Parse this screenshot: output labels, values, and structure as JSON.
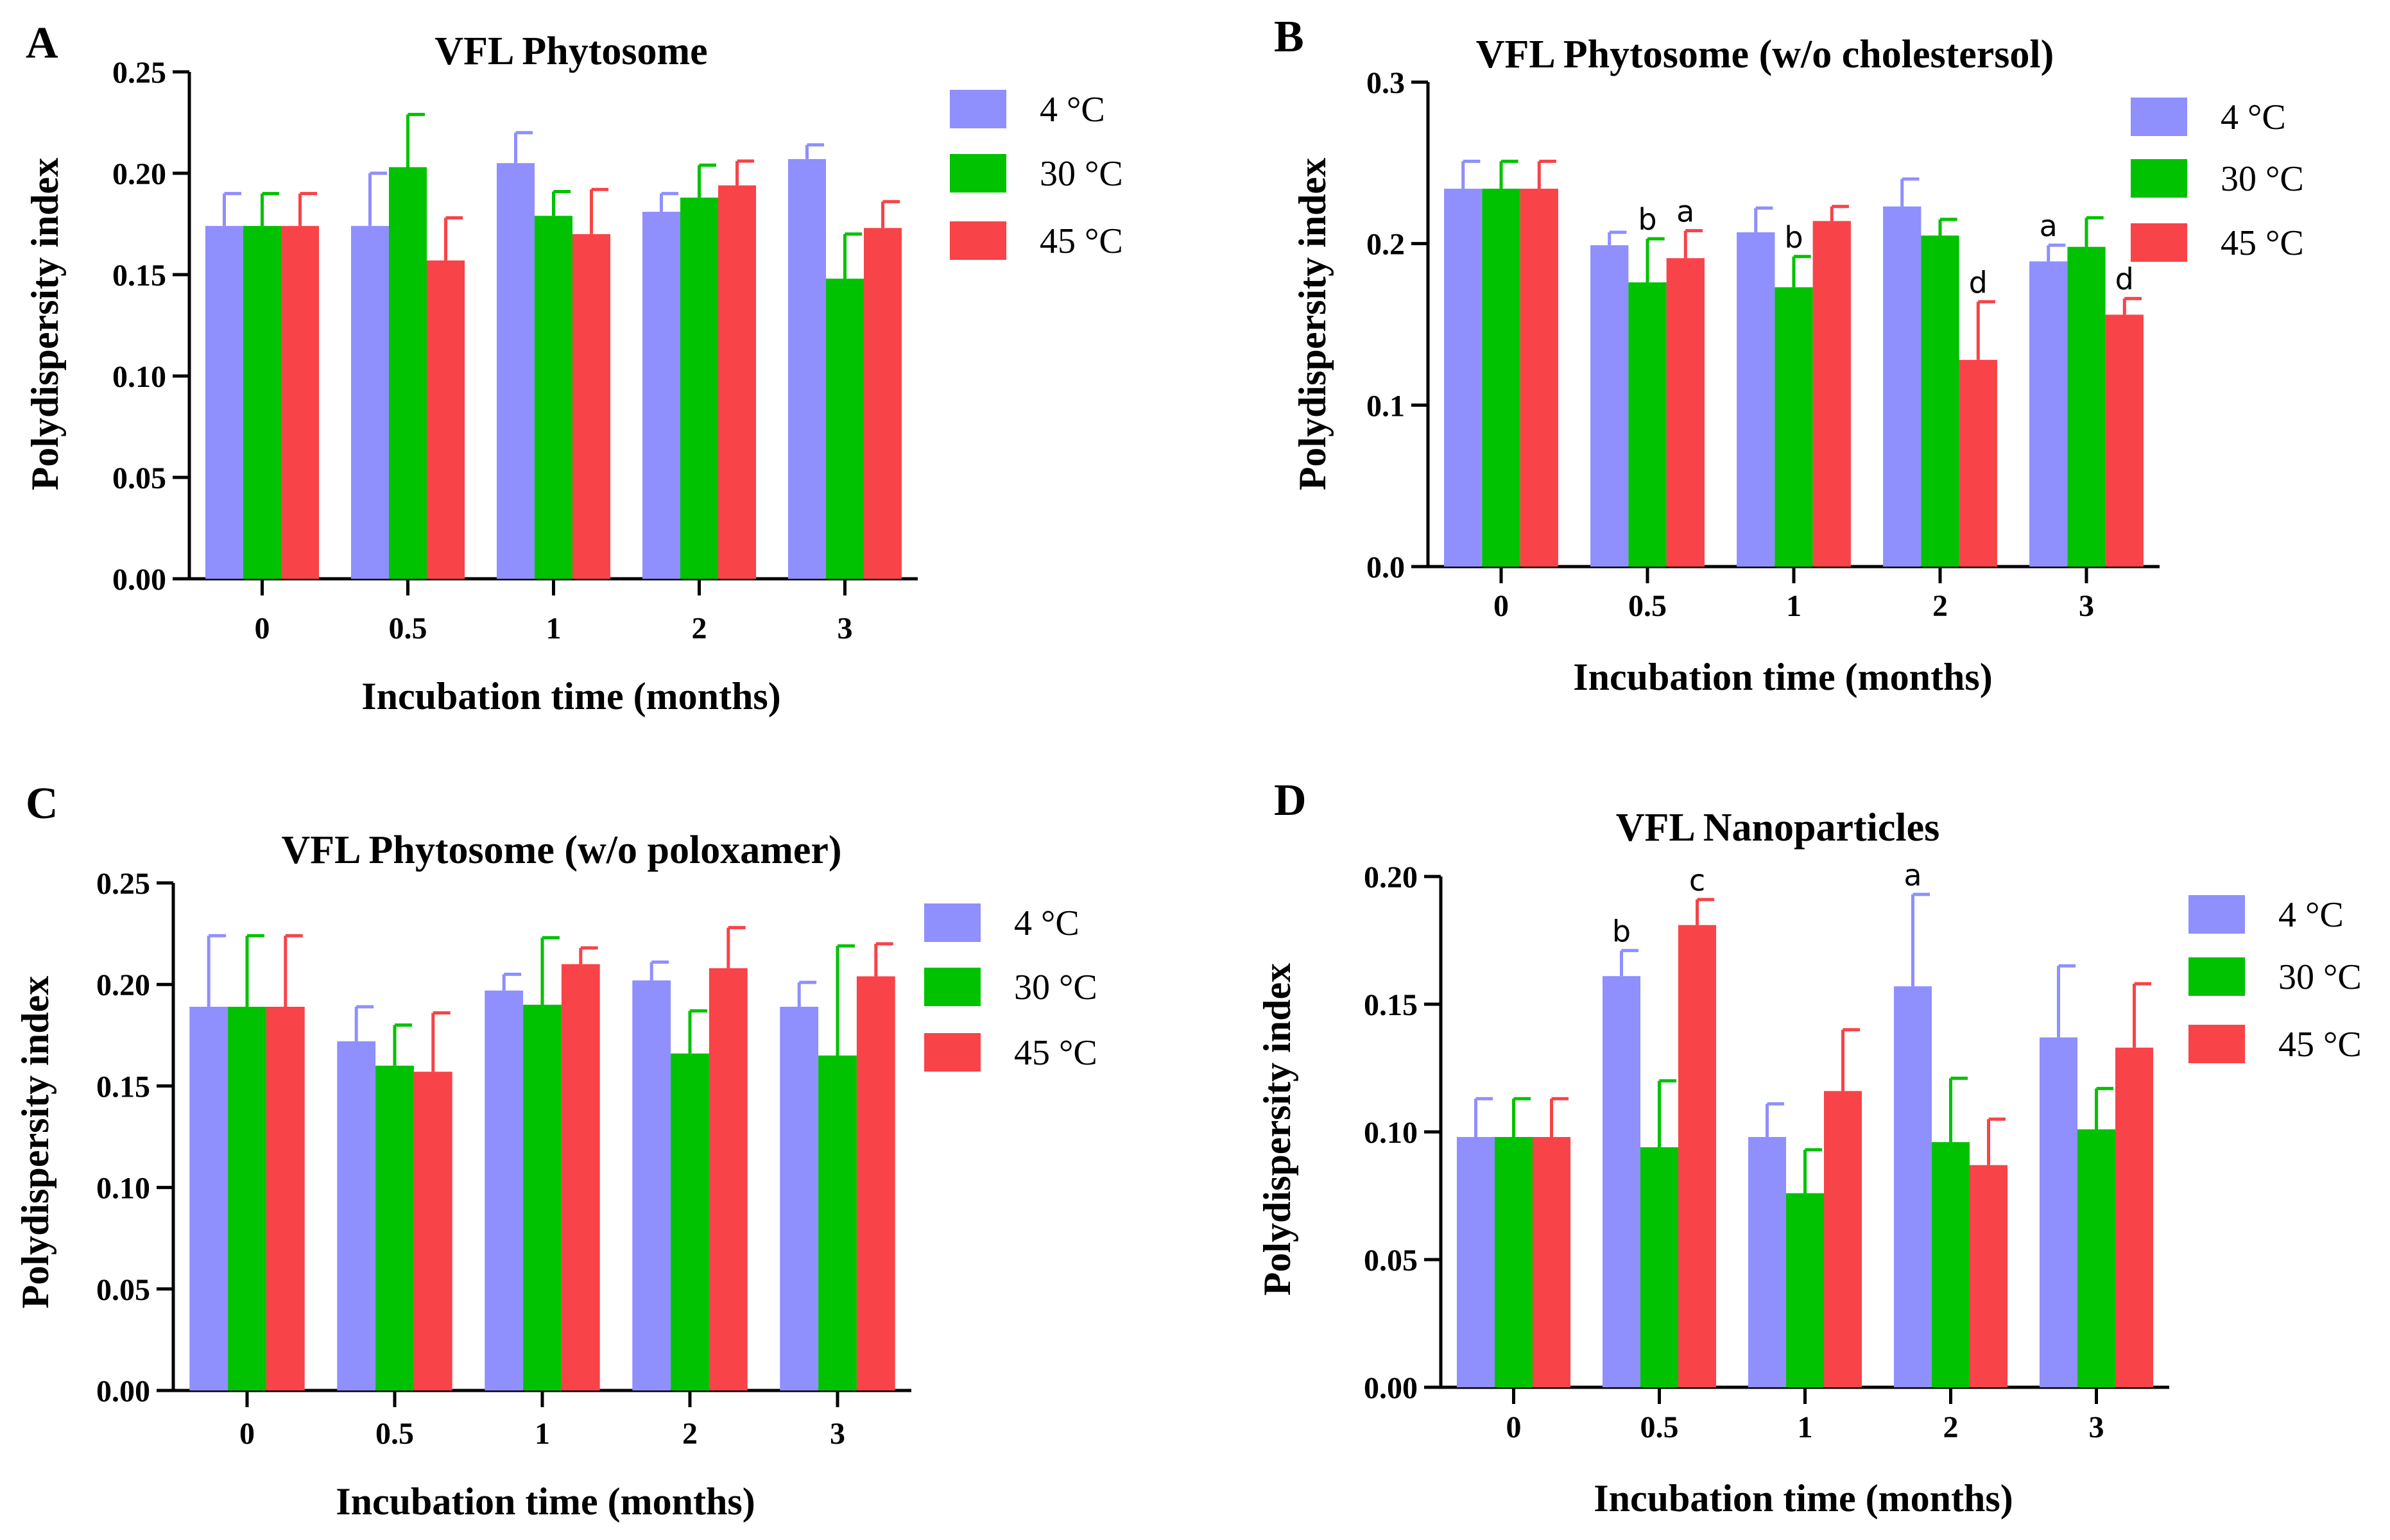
{
  "colors": {
    "4C": "#8f8ffe",
    "30C": "#00c200",
    "45C": "#f84348",
    "axis": "#000000"
  },
  "chart_data": [
    {
      "panel": "A",
      "type": "bar",
      "title": "VFL Phytosome",
      "xlabel": "Incubation time (months)",
      "ylabel": "Polydispersity index",
      "categories": [
        "0",
        "0.5",
        "1",
        "2",
        "3"
      ],
      "ylim": [
        0,
        0.25
      ],
      "yticks": [
        "0.00",
        "0.05",
        "0.10",
        "0.15",
        "0.20",
        "0.25"
      ],
      "legend": "top-right",
      "series": [
        {
          "name": "4 °C",
          "color_key": "4C",
          "values": [
            0.174,
            0.174,
            0.205,
            0.181,
            0.207
          ],
          "errors": [
            0.016,
            0.026,
            0.015,
            0.009,
            0.007
          ],
          "labels": [
            "",
            "",
            "",
            "",
            ""
          ]
        },
        {
          "name": "30 °C",
          "color_key": "30C",
          "values": [
            0.174,
            0.203,
            0.179,
            0.188,
            0.148
          ],
          "errors": [
            0.016,
            0.026,
            0.012,
            0.016,
            0.022
          ],
          "labels": [
            "",
            "",
            "",
            "",
            ""
          ]
        },
        {
          "name": "45 °C",
          "color_key": "45C",
          "values": [
            0.174,
            0.157,
            0.17,
            0.194,
            0.173
          ],
          "errors": [
            0.016,
            0.021,
            0.022,
            0.012,
            0.013
          ],
          "labels": [
            "",
            "",
            "",
            "",
            ""
          ]
        }
      ]
    },
    {
      "panel": "B",
      "type": "bar",
      "title": "VFL Phytosome (w/o cholestersol)",
      "xlabel": "Incubation time (months)",
      "ylabel": "Polydispersity index",
      "categories": [
        "0",
        "0.5",
        "1",
        "2",
        "3"
      ],
      "ylim": [
        0,
        0.3
      ],
      "yticks": [
        "0.0",
        "0.1",
        "0.2",
        "0.3"
      ],
      "legend": "top-right",
      "series": [
        {
          "name": "4 °C",
          "color_key": "4C",
          "values": [
            0.234,
            0.199,
            0.207,
            0.223,
            0.189
          ],
          "errors": [
            0.017,
            0.008,
            0.015,
            0.017,
            0.01
          ],
          "labels": [
            "",
            "",
            "",
            "",
            "a"
          ]
        },
        {
          "name": "30 °C",
          "color_key": "30C",
          "values": [
            0.234,
            0.176,
            0.173,
            0.205,
            0.198
          ],
          "errors": [
            0.017,
            0.027,
            0.019,
            0.01,
            0.018
          ],
          "labels": [
            "",
            "b",
            "b",
            "",
            ""
          ]
        },
        {
          "name": "45 °C",
          "color_key": "45C",
          "values": [
            0.234,
            0.191,
            0.214,
            0.128,
            0.156
          ],
          "errors": [
            0.017,
            0.017,
            0.009,
            0.036,
            0.01
          ],
          "labels": [
            "",
            "a",
            "",
            "d",
            "d"
          ]
        }
      ]
    },
    {
      "panel": "C",
      "type": "bar",
      "title": "VFL Phytosome (w/o poloxamer)",
      "xlabel": "Incubation time (months)",
      "ylabel": "Polydispersity index",
      "categories": [
        "0",
        "0.5",
        "1",
        "2",
        "3"
      ],
      "ylim": [
        0,
        0.25
      ],
      "yticks": [
        "0.00",
        "0.05",
        "0.10",
        "0.15",
        "0.20",
        "0.25"
      ],
      "legend": "top-right",
      "series": [
        {
          "name": "4 °C",
          "color_key": "4C",
          "values": [
            0.189,
            0.172,
            0.197,
            0.202,
            0.189
          ],
          "errors": [
            0.035,
            0.017,
            0.008,
            0.009,
            0.012
          ],
          "labels": [
            "",
            "",
            "",
            "",
            ""
          ]
        },
        {
          "name": "30 °C",
          "color_key": "30C",
          "values": [
            0.189,
            0.16,
            0.19,
            0.166,
            0.165
          ],
          "errors": [
            0.035,
            0.02,
            0.033,
            0.021,
            0.054
          ],
          "labels": [
            "",
            "",
            "",
            "",
            ""
          ]
        },
        {
          "name": "45 °C",
          "color_key": "45C",
          "values": [
            0.189,
            0.157,
            0.21,
            0.208,
            0.204
          ],
          "errors": [
            0.035,
            0.029,
            0.008,
            0.02,
            0.016
          ],
          "labels": [
            "",
            "",
            "",
            "",
            ""
          ]
        }
      ]
    },
    {
      "panel": "D",
      "type": "bar",
      "title": "VFL Nanoparticles",
      "xlabel": "Incubation time (months)",
      "ylabel": "Polydispersity index",
      "categories": [
        "0",
        "0.5",
        "1",
        "2",
        "3"
      ],
      "ylim": [
        0,
        0.2
      ],
      "yticks": [
        "0.00",
        "0.05",
        "0.10",
        "0.15",
        "0.20"
      ],
      "legend": "top-right",
      "series": [
        {
          "name": "4 °C",
          "color_key": "4C",
          "values": [
            0.098,
            0.161,
            0.098,
            0.157,
            0.137
          ],
          "errors": [
            0.015,
            0.01,
            0.013,
            0.036,
            0.028
          ],
          "labels": [
            "",
            "b",
            "",
            "a",
            ""
          ]
        },
        {
          "name": "30 °C",
          "color_key": "30C",
          "values": [
            0.098,
            0.094,
            0.076,
            0.096,
            0.101
          ],
          "errors": [
            0.015,
            0.026,
            0.017,
            0.025,
            0.016
          ],
          "labels": [
            "",
            "",
            "",
            "",
            ""
          ]
        },
        {
          "name": "45 °C",
          "color_key": "45C",
          "values": [
            0.098,
            0.181,
            0.116,
            0.087,
            0.133
          ],
          "errors": [
            0.015,
            0.01,
            0.024,
            0.018,
            0.025
          ],
          "labels": [
            "",
            "c",
            "",
            "",
            ""
          ]
        }
      ]
    }
  ]
}
